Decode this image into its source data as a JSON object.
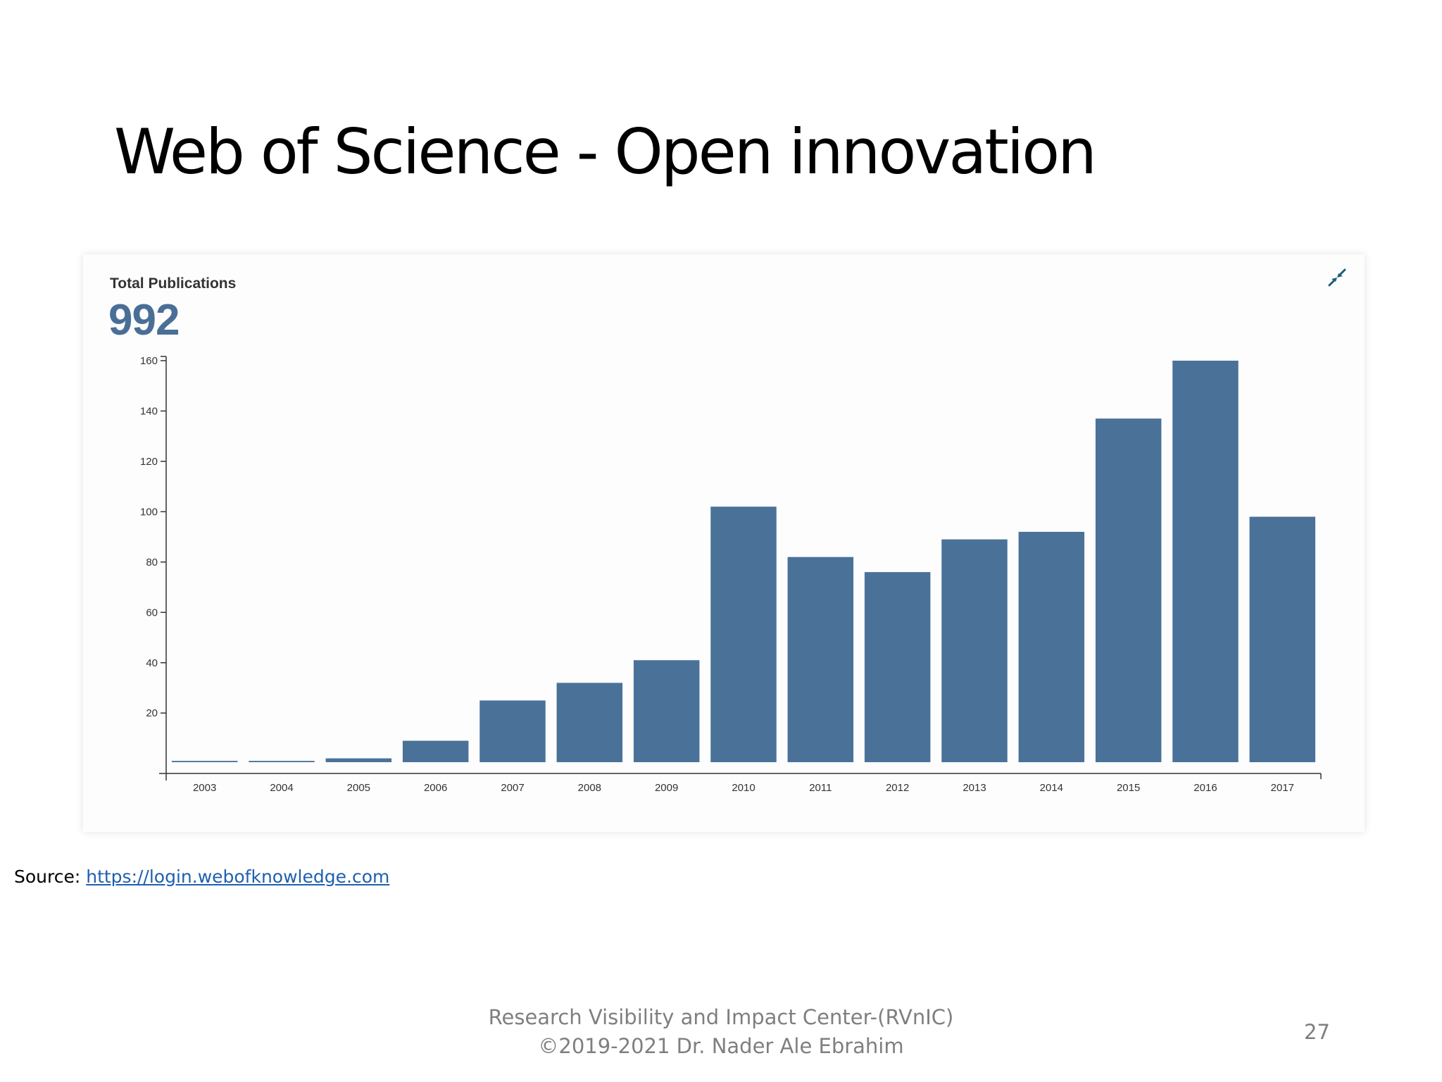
{
  "slide": {
    "title": "Web of Science - Open innovation",
    "source_label": "Source: ",
    "source_link": "https://login.webofknowledge.com",
    "footer_org": "Research Visibility and Impact Center-(RVnIC)",
    "footer_copyright": "©2019-2021 Dr. Nader Ale Ebrahim",
    "page_number": "27"
  },
  "card": {
    "heading": "Total Publications",
    "total": "992",
    "collapse_icon": "collapse-arrows-icon"
  },
  "colors": {
    "bar": "#4a7299",
    "accent": "#4a6f96",
    "axis": "#333333",
    "link": "#1f5fb0",
    "footer_text": "#7f7f7f"
  },
  "chart_data": {
    "type": "bar",
    "title": "",
    "xlabel": "",
    "ylabel": "",
    "categories": [
      "2003",
      "2004",
      "2005",
      "2006",
      "2007",
      "2008",
      "2009",
      "2010",
      "2011",
      "2012",
      "2013",
      "2014",
      "2015",
      "2016",
      "2017"
    ],
    "values": [
      1,
      1,
      2,
      9,
      25,
      32,
      41,
      102,
      82,
      76,
      89,
      92,
      137,
      160,
      98
    ],
    "yticks": [
      20,
      40,
      60,
      80,
      100,
      120,
      140,
      160
    ],
    "ylim": [
      -4,
      160
    ],
    "grid": false,
    "legend": "none"
  }
}
